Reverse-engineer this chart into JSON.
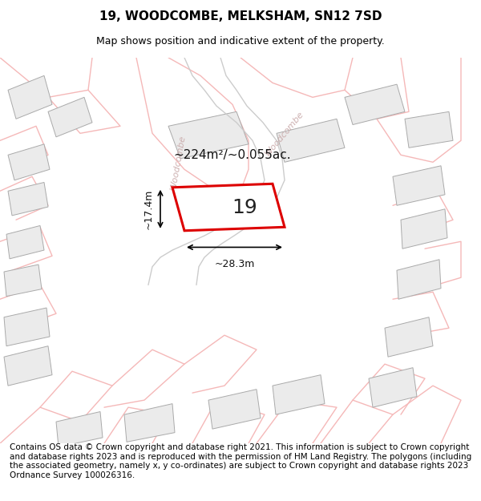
{
  "title": "19, WOODCOMBE, MELKSHAM, SN12 7SD",
  "subtitle": "Map shows position and indicative extent of the property.",
  "footer": "Contains OS data © Crown copyright and database right 2021. This information is subject to Crown copyright and database rights 2023 and is reproduced with the permission of HM Land Registry. The polygons (including the associated geometry, namely x, y co-ordinates) are subject to Crown copyright and database rights 2023 Ordnance Survey 100026316.",
  "area_text": "~224m²/~0.055ac.",
  "property_number": "19",
  "dim_width": "~28.3m",
  "dim_height": "~17.4m",
  "road_label_1": "Woodcombe",
  "road_label_2": "Woodcombe",
  "bg_color": "#ffffff",
  "map_bg": "#ffffff",
  "property_fill": "#ffffff",
  "property_edge": "#dd0000",
  "neighbor_fill": "#ebebeb",
  "neighbor_edge": "#aaaaaa",
  "road_line_color": "#f5b8b8",
  "road_outline_color": "#dddddd",
  "title_fontsize": 11,
  "subtitle_fontsize": 9,
  "footer_fontsize": 7.5
}
